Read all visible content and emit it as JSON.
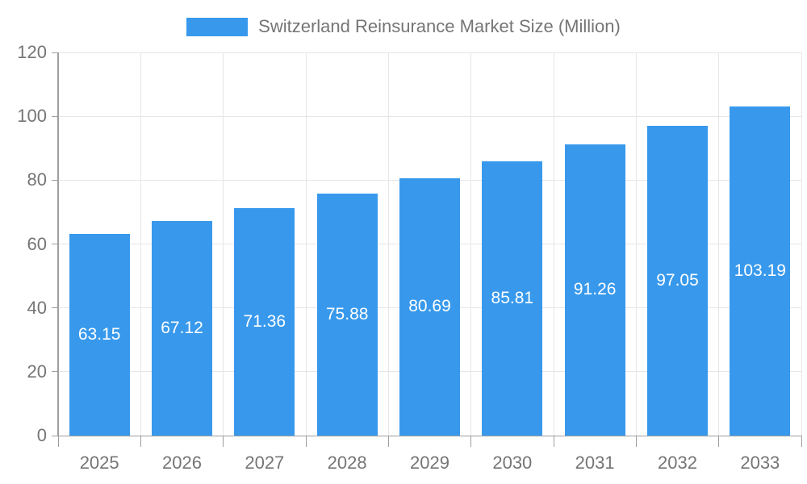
{
  "legend": {
    "label": "Switzerland Reinsurance Market Size (Million)"
  },
  "colors": {
    "bar": "#3899ec",
    "grid": "#e6e6e6",
    "axis": "#9e9e9e",
    "tick_text": "#757575",
    "value_text": "#ffffff",
    "background": "#ffffff"
  },
  "chart_data": {
    "type": "bar",
    "title": "Switzerland Reinsurance Market Size (Million)",
    "categories": [
      "2025",
      "2026",
      "2027",
      "2028",
      "2029",
      "2030",
      "2031",
      "2032",
      "2033"
    ],
    "values": [
      63.15,
      67.12,
      71.36,
      75.88,
      80.69,
      85.81,
      91.26,
      97.05,
      103.19
    ],
    "value_labels": [
      "63.15",
      "67.12",
      "71.36",
      "75.88",
      "80.69",
      "85.81",
      "91.26",
      "97.05",
      "103.19"
    ],
    "xlabel": "",
    "ylabel": "",
    "ylim": [
      0,
      120
    ],
    "ytick_step": 20,
    "ytick_labels": [
      "0",
      "20",
      "40",
      "60",
      "80",
      "100",
      "120"
    ],
    "grid": true,
    "legend_position": "top-center",
    "value_label_placement": "inside-center"
  }
}
